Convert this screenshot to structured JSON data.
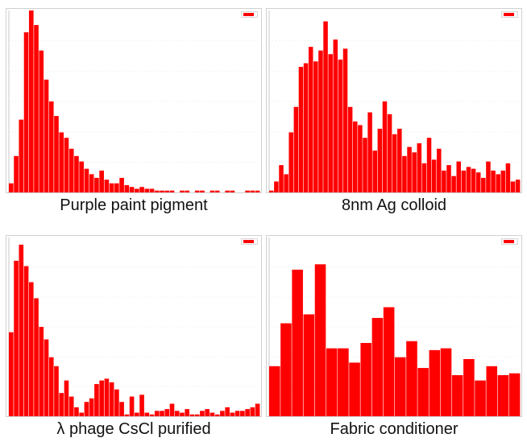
{
  "colors": {
    "bar": "#ff0000",
    "grid": "#eaeaea",
    "axis": "#c8c8c8"
  },
  "chart_data": [
    {
      "type": "bar",
      "title": "Purple paint pigment",
      "legend": "",
      "values": [
        5,
        20,
        40,
        88,
        100,
        92,
        78,
        62,
        50,
        42,
        33,
        30,
        24,
        20,
        17,
        13,
        10,
        8,
        12,
        7,
        5,
        5,
        8,
        4,
        3,
        2,
        3,
        2,
        2,
        1,
        1,
        1,
        1,
        0,
        1,
        1,
        0,
        1,
        1,
        0,
        1,
        1,
        0,
        1,
        1,
        0,
        0,
        1,
        1,
        1
      ],
      "ylim": [
        0,
        100
      ]
    },
    {
      "type": "bar",
      "title": "8nm Ag colloid",
      "legend": "",
      "values": [
        1,
        6,
        15,
        10,
        33,
        47,
        69,
        71,
        80,
        72,
        78,
        94,
        76,
        84,
        73,
        79,
        47,
        39,
        37,
        30,
        44,
        23,
        35,
        50,
        43,
        32,
        35,
        20,
        25,
        22,
        27,
        16,
        30,
        18,
        24,
        12,
        15,
        9,
        17,
        12,
        14,
        13,
        11,
        8,
        17,
        12,
        10,
        12,
        16,
        6,
        7
      ],
      "ylim": [
        0,
        100
      ]
    },
    {
      "type": "bar",
      "title": "λ phage CsCl purified",
      "legend": "",
      "values": [
        47,
        87,
        96,
        84,
        75,
        66,
        50,
        43,
        33,
        28,
        13,
        20,
        11,
        5,
        2,
        8,
        10,
        18,
        20,
        21,
        19,
        15,
        8,
        1,
        11,
        2,
        12,
        2,
        1,
        3,
        3,
        4,
        7,
        3,
        2,
        4,
        1,
        1,
        3,
        4,
        2,
        1,
        3,
        5,
        2,
        3,
        3,
        4,
        5,
        7
      ],
      "ylim": [
        0,
        100
      ]
    },
    {
      "type": "bar",
      "title": "Fabric conditioner",
      "legend": "",
      "values": [
        28,
        52,
        82,
        57,
        85,
        38,
        38,
        30,
        41,
        55,
        61,
        33,
        42,
        27,
        37,
        38,
        23,
        32,
        20,
        28,
        23,
        24
      ],
      "ylim": [
        0,
        100
      ]
    }
  ]
}
